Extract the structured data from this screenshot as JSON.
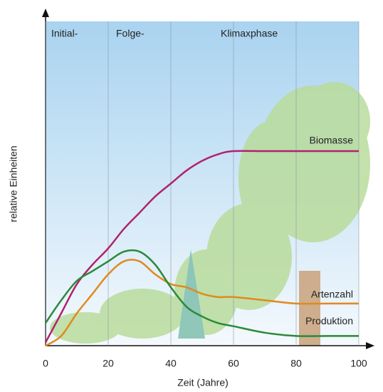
{
  "chart_data": {
    "type": "line",
    "x_label": "Zeit (Jahre)",
    "y_label": "relative Einheiten",
    "annotations": [
      "Initial-",
      "Folge-",
      "Klimaxphase"
    ],
    "x": [
      0,
      5,
      10,
      15,
      20,
      25,
      30,
      35,
      40,
      45,
      50,
      55,
      60,
      70,
      80,
      90,
      100
    ],
    "series": [
      {
        "name": "Biomasse",
        "color": "#b0246a",
        "values": [
          1,
          10,
          19,
          25,
          30,
          36,
          41,
          46,
          50,
          54,
          57,
          59,
          60,
          60,
          60,
          60,
          60
        ]
      },
      {
        "name": "Artenzahl",
        "color": "#e08a1e",
        "values": [
          0,
          3,
          10,
          16,
          22,
          26,
          26,
          22,
          19,
          18,
          16,
          15,
          15,
          14,
          13,
          13,
          13
        ]
      },
      {
        "name": "Produktion",
        "color": "#2a8a3a",
        "values": [
          7,
          14,
          20,
          23,
          26,
          29,
          29,
          25,
          18,
          12,
          9,
          7,
          6,
          4,
          3,
          3,
          3
        ]
      }
    ],
    "xlim": [
      0,
      100
    ],
    "xticks": [
      0,
      20,
      40,
      60,
      80,
      100
    ],
    "ylim": [
      0,
      100
    ],
    "grid": true
  }
}
